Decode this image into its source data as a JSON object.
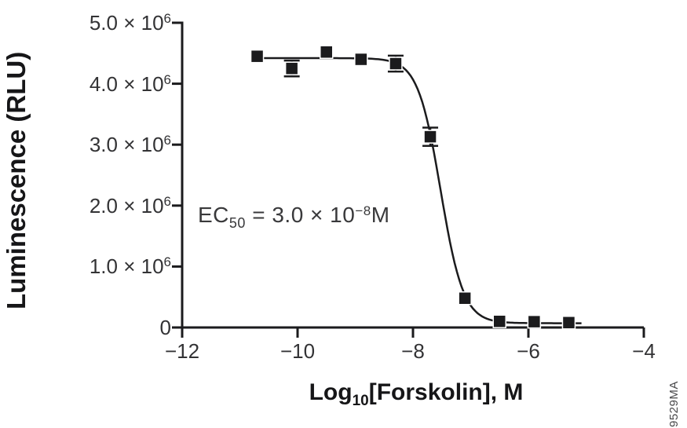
{
  "chart_data": {
    "type": "scatter",
    "ylabel": "Luminescence (RLU)",
    "xlabel_parts": {
      "pre": "Log",
      "sub": "10",
      "post": "[Forskolin], M"
    },
    "xlabel_text": "Log10[Forskolin], M",
    "annotation_parts": {
      "pre": "EC",
      "sub": "50",
      "mid": " = 3.0 × 10",
      "sup": "−8",
      "post": "M"
    },
    "annotation_text": "EC50 = 3.0 × 10−8M",
    "ec50_molar": "3.0e-8",
    "watermark": "9529MA",
    "xlim": [
      -12,
      -4
    ],
    "ylim": [
      0,
      5000000
    ],
    "grid": false,
    "legend": "none",
    "x_ticks": [
      {
        "value": -12,
        "label": "−12"
      },
      {
        "value": -10,
        "label": "−10"
      },
      {
        "value": -8,
        "label": "−8"
      },
      {
        "value": -6,
        "label": "−6"
      },
      {
        "value": -4,
        "label": "−4"
      }
    ],
    "y_ticks": [
      {
        "value": 0,
        "base": "0",
        "sup": ""
      },
      {
        "value": 1000000,
        "base": "1.0 × 10",
        "sup": "6"
      },
      {
        "value": 2000000,
        "base": "2.0 × 10",
        "sup": "6"
      },
      {
        "value": 3000000,
        "base": "3.0 × 10",
        "sup": "6"
      },
      {
        "value": 4000000,
        "base": "4.0 × 10",
        "sup": "6"
      },
      {
        "value": 5000000,
        "base": "5.0 × 10",
        "sup": "6"
      }
    ],
    "points": [
      {
        "x": -10.7,
        "y": 4450000,
        "sem": 0
      },
      {
        "x": -10.1,
        "y": 4250000,
        "sem": 130000
      },
      {
        "x": -9.5,
        "y": 4520000,
        "sem": 0
      },
      {
        "x": -8.9,
        "y": 4400000,
        "sem": 0
      },
      {
        "x": -8.3,
        "y": 4330000,
        "sem": 130000
      },
      {
        "x": -7.7,
        "y": 3130000,
        "sem": 150000
      },
      {
        "x": -7.1,
        "y": 480000,
        "sem": 0
      },
      {
        "x": -6.5,
        "y": 100000,
        "sem": 0
      },
      {
        "x": -5.9,
        "y": 95000,
        "sem": 0
      },
      {
        "x": -5.3,
        "y": 80000,
        "sem": 0
      }
    ],
    "fit": {
      "model": "4PL",
      "top": 4420000,
      "bottom": 70000,
      "log_ec50": -7.52,
      "hill": 2.2,
      "x_start": -10.72,
      "x_end": -5.05
    },
    "colors": {
      "axis": "#1b1b1d",
      "line": "#1b1b1d",
      "marker": "#1b1b1d",
      "tick_text": "#333335",
      "title_text": "#161618",
      "watermark_text": "#4a4a4c"
    }
  }
}
